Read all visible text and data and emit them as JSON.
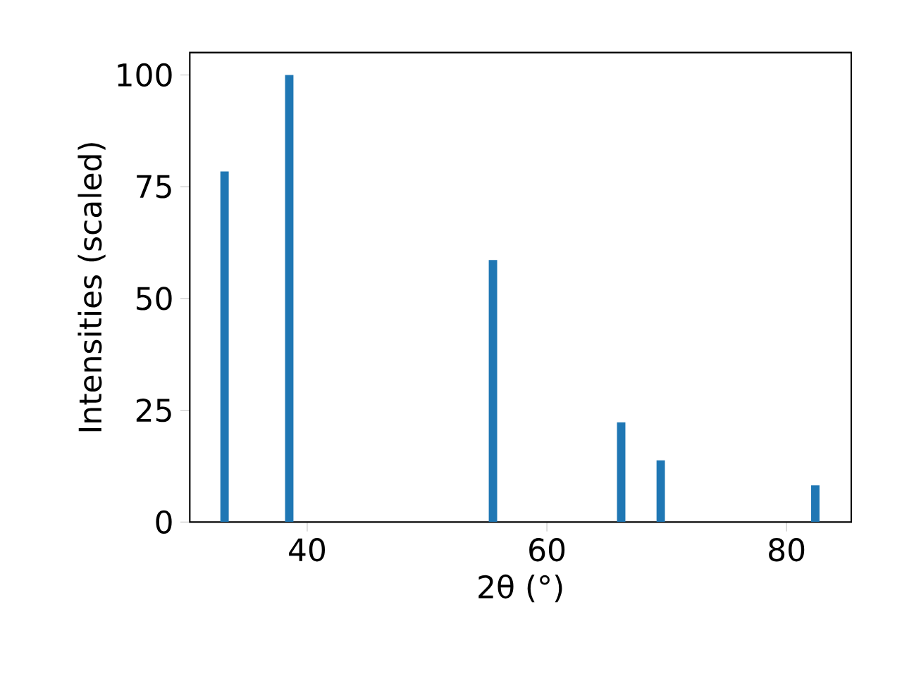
{
  "chart_data": {
    "type": "bar",
    "xlabel": "2θ (°)",
    "ylabel": "Intensities (scaled)",
    "x": [
      33.1,
      38.5,
      55.5,
      66.2,
      69.5,
      82.4
    ],
    "values": [
      78.4,
      100,
      58.6,
      22.3,
      13.8,
      8.2
    ],
    "color": "#1f77b4",
    "xlim": [
      30.2,
      85.4
    ],
    "xticks": [
      40,
      60,
      80
    ],
    "ylim": [
      0,
      105
    ],
    "yticks": [
      0,
      25,
      50,
      75,
      100
    ]
  }
}
